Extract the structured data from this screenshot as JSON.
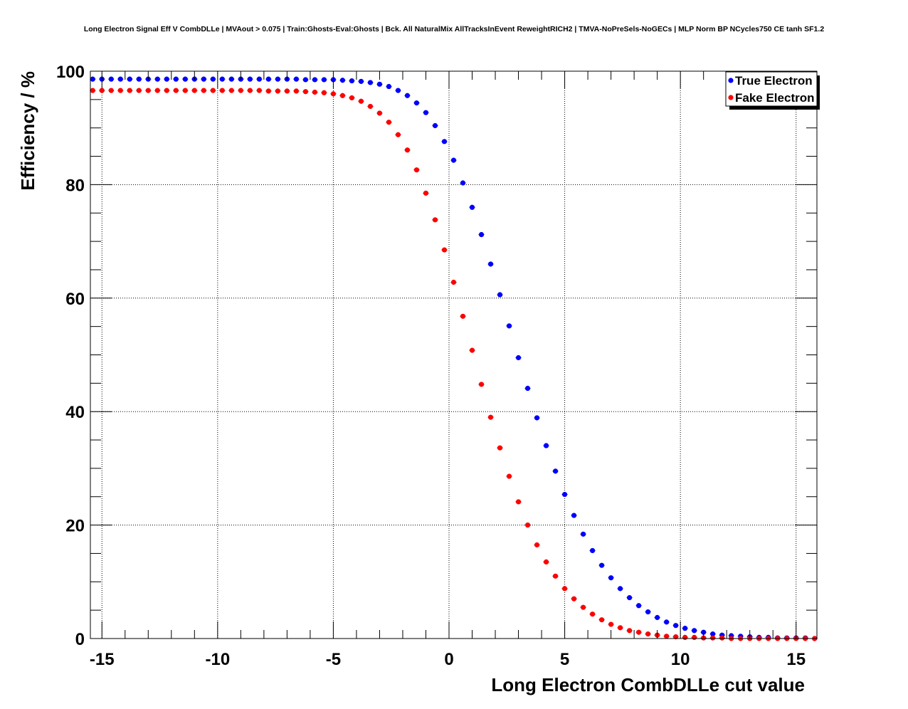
{
  "chart_data": {
    "type": "scatter",
    "title": "Long Electron Signal Eff V CombDLLe | MVAout > 0.075 | Train:Ghosts-Eval:Ghosts | Bck. All NaturalMix AllTracksInEvent ReweightRICH2 | TMVA-NoPreSels-NoGECs | MLP Norm BP NCycles750 CE tanh SF1.2",
    "xlabel": "Long Electron CombDLLe cut value",
    "ylabel": "Efficiency / %",
    "xlim": [
      -15.5,
      15.9
    ],
    "ylim": [
      0,
      100
    ],
    "grid": true,
    "legend_position": "top-right",
    "x_ticks": [
      -15,
      -10,
      -5,
      0,
      5,
      10,
      15
    ],
    "y_ticks": [
      0,
      20,
      40,
      60,
      80,
      100
    ],
    "x_tick_labels": [
      "-15",
      "-10",
      "-5",
      "0",
      "5",
      "10",
      "15"
    ],
    "y_tick_labels": [
      "0",
      "20",
      "40",
      "60",
      "80",
      "100"
    ],
    "x": [
      -15.4,
      -15.0,
      -14.6,
      -14.2,
      -13.8,
      -13.4,
      -13.0,
      -12.6,
      -12.2,
      -11.8,
      -11.4,
      -11.0,
      -10.6,
      -10.2,
      -9.8,
      -9.4,
      -9.0,
      -8.6,
      -8.2,
      -7.8,
      -7.4,
      -7.0,
      -6.6,
      -6.2,
      -5.8,
      -5.4,
      -5.0,
      -4.6,
      -4.2,
      -3.8,
      -3.4,
      -3.0,
      -2.6,
      -2.2,
      -1.8,
      -1.4,
      -1.0,
      -0.6,
      -0.2,
      0.2,
      0.6,
      1.0,
      1.4,
      1.8,
      2.2,
      2.6,
      3.0,
      3.4,
      3.8,
      4.2,
      4.6,
      5.0,
      5.4,
      5.8,
      6.2,
      6.6,
      7.0,
      7.4,
      7.8,
      8.2,
      8.6,
      9.0,
      9.4,
      9.8,
      10.2,
      10.6,
      11.0,
      11.4,
      11.8,
      12.2,
      12.6,
      13.0,
      13.4,
      13.8,
      14.2,
      14.6,
      15.0,
      15.4,
      15.8
    ],
    "series": [
      {
        "name": "True Electron",
        "color": "#0000ff",
        "values": [
          98.6,
          98.6,
          98.6,
          98.6,
          98.6,
          98.6,
          98.6,
          98.6,
          98.6,
          98.6,
          98.6,
          98.6,
          98.6,
          98.6,
          98.6,
          98.6,
          98.6,
          98.6,
          98.6,
          98.6,
          98.6,
          98.6,
          98.6,
          98.5,
          98.5,
          98.5,
          98.5,
          98.4,
          98.3,
          98.2,
          98.0,
          97.7,
          97.3,
          96.6,
          95.7,
          94.4,
          92.7,
          90.4,
          87.6,
          84.3,
          80.3,
          76.0,
          71.2,
          66.0,
          60.6,
          55.1,
          49.5,
          44.1,
          38.9,
          34.0,
          29.5,
          25.4,
          21.7,
          18.4,
          15.5,
          12.9,
          10.7,
          8.8,
          7.2,
          5.8,
          4.7,
          3.7,
          2.9,
          2.3,
          1.8,
          1.4,
          1.1,
          0.8,
          0.6,
          0.5,
          0.4,
          0.3,
          0.2,
          0.2,
          0.1,
          0.1,
          0.1,
          0.1,
          0.0
        ]
      },
      {
        "name": "Fake Electron",
        "color": "#ff0000",
        "values": [
          96.6,
          96.6,
          96.6,
          96.6,
          96.6,
          96.6,
          96.6,
          96.6,
          96.6,
          96.6,
          96.6,
          96.6,
          96.6,
          96.6,
          96.6,
          96.6,
          96.6,
          96.6,
          96.6,
          96.5,
          96.5,
          96.5,
          96.5,
          96.4,
          96.3,
          96.2,
          96.0,
          95.7,
          95.3,
          94.7,
          93.8,
          92.6,
          91.0,
          88.8,
          86.1,
          82.6,
          78.5,
          73.8,
          68.5,
          62.8,
          56.8,
          50.8,
          44.8,
          39.0,
          33.6,
          28.6,
          24.1,
          20.0,
          16.5,
          13.5,
          11.0,
          8.8,
          7.0,
          5.5,
          4.3,
          3.3,
          2.5,
          1.9,
          1.4,
          1.1,
          0.8,
          0.6,
          0.4,
          0.3,
          0.2,
          0.2,
          0.1,
          0.1,
          0.1,
          0.0,
          0.0,
          0.0,
          0.0,
          0.0,
          0.0,
          0.0,
          0.0,
          0.0,
          0.0
        ]
      }
    ]
  }
}
